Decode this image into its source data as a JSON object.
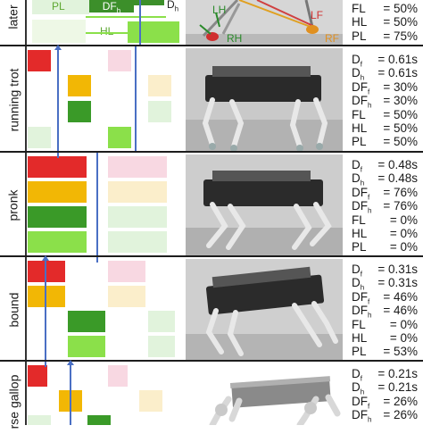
{
  "header": {
    "gait_label_partial": "later",
    "pl_label": "PL",
    "df_label": "DF",
    "df_sub": "h",
    "hl_label": "HL",
    "dh_label": "D",
    "dh_sub": "h",
    "photo_labels": {
      "lh": "LH",
      "lf": "LF",
      "rh": "RH",
      "rf": "RF"
    },
    "stats": [
      {
        "key": "FL",
        "sub": "",
        "value": "= 50%"
      },
      {
        "key": "HL",
        "sub": "",
        "value": "= 50%"
      },
      {
        "key": "PL",
        "sub": "",
        "value": "= 75%"
      }
    ]
  },
  "rows": [
    {
      "gait": "running trot",
      "stats": [
        {
          "key": "D",
          "sub": "f",
          "value": "= 0.61s"
        },
        {
          "key": "D",
          "sub": "h",
          "value": "= 0.61s"
        },
        {
          "key": "DF",
          "sub": "f",
          "value": "= 30%"
        },
        {
          "key": "DF",
          "sub": "h",
          "value": "= 30%"
        },
        {
          "key": "FL",
          "sub": "",
          "value": "= 50%"
        },
        {
          "key": "HL",
          "sub": "",
          "value": "= 50%"
        },
        {
          "key": "PL",
          "sub": "",
          "value": "= 50%"
        }
      ]
    },
    {
      "gait": "pronk",
      "stats": [
        {
          "key": "D",
          "sub": "f",
          "value": "= 0.48s"
        },
        {
          "key": "D",
          "sub": "h",
          "value": "= 0.48s"
        },
        {
          "key": "DF",
          "sub": "f",
          "value": "= 76%"
        },
        {
          "key": "DF",
          "sub": "h",
          "value": "= 76%"
        },
        {
          "key": "FL",
          "sub": "",
          "value": "= 0%"
        },
        {
          "key": "HL",
          "sub": "",
          "value": "= 0%"
        },
        {
          "key": "PL",
          "sub": "",
          "value": "= 0%"
        }
      ]
    },
    {
      "gait": "bound",
      "stats": [
        {
          "key": "D",
          "sub": "f",
          "value": "= 0.31s"
        },
        {
          "key": "D",
          "sub": "h",
          "value": "= 0.31s"
        },
        {
          "key": "DF",
          "sub": "f",
          "value": "= 46%"
        },
        {
          "key": "DF",
          "sub": "h",
          "value": "= 46%"
        },
        {
          "key": "FL",
          "sub": "",
          "value": "= 0%"
        },
        {
          "key": "HL",
          "sub": "",
          "value": "= 0%"
        },
        {
          "key": "PL",
          "sub": "",
          "value": "= 53%"
        }
      ]
    },
    {
      "gait": "rse gallop",
      "stats": [
        {
          "key": "D",
          "sub": "f",
          "value": "= 0.21s"
        },
        {
          "key": "D",
          "sub": "h",
          "value": "= 0.21s"
        },
        {
          "key": "DF",
          "sub": "f",
          "value": "= 26%"
        },
        {
          "key": "DF",
          "sub": "h",
          "value": "= 26%"
        }
      ]
    }
  ],
  "colors": {
    "red": "#e32a2a",
    "yellow": "#f2b705",
    "green_dark": "#3a9a28",
    "green_light": "#8be04a",
    "pink_faint": "#f8d8e2",
    "yellow_faint": "#fbeecb",
    "green_faint": "#e1f3dc",
    "blue": "#4a6fc4"
  }
}
